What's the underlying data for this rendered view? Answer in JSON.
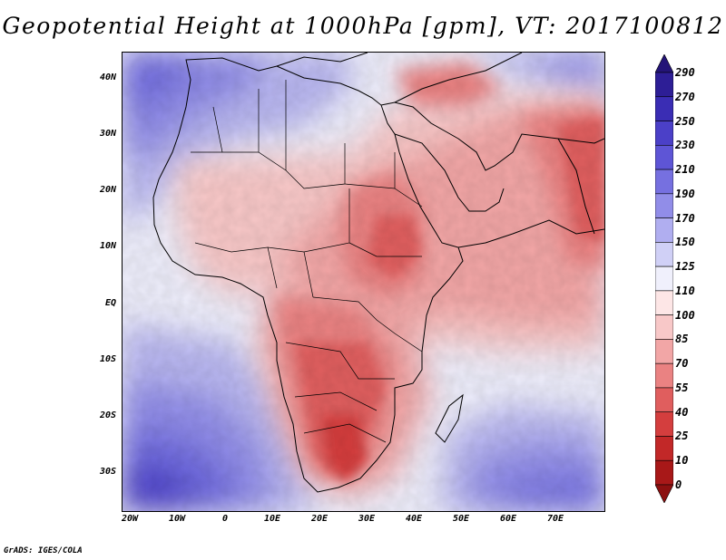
{
  "title": "Geopotential Height at 1000hPa [gpm], VT: 2017100812",
  "footer": "GrADS: IGES/COLA",
  "map": {
    "lat_labels": [
      "40N",
      "30N",
      "20N",
      "10N",
      "EQ",
      "10S",
      "20S",
      "30S"
    ],
    "lon_labels": [
      "20W",
      "10W",
      "0",
      "10E",
      "20E",
      "30E",
      "40E",
      "50E",
      "60E",
      "70E"
    ]
  },
  "colorbar": {
    "labels": [
      "290",
      "270",
      "250",
      "230",
      "210",
      "190",
      "170",
      "150",
      "125",
      "110",
      "100",
      "85",
      "70",
      "55",
      "40",
      "25",
      "10",
      "0"
    ],
    "colors": [
      "#241478",
      "#2d1e96",
      "#3a2db4",
      "#4b40c8",
      "#5e55d6",
      "#7670e0",
      "#918de8",
      "#b0aef0",
      "#d0d0f6",
      "#f0f0fc",
      "#fde6e6",
      "#f8c8c8",
      "#f2a6a6",
      "#ea8282",
      "#e05e5e",
      "#d43e3e",
      "#c22828",
      "#a81818",
      "#8c1010"
    ]
  }
}
